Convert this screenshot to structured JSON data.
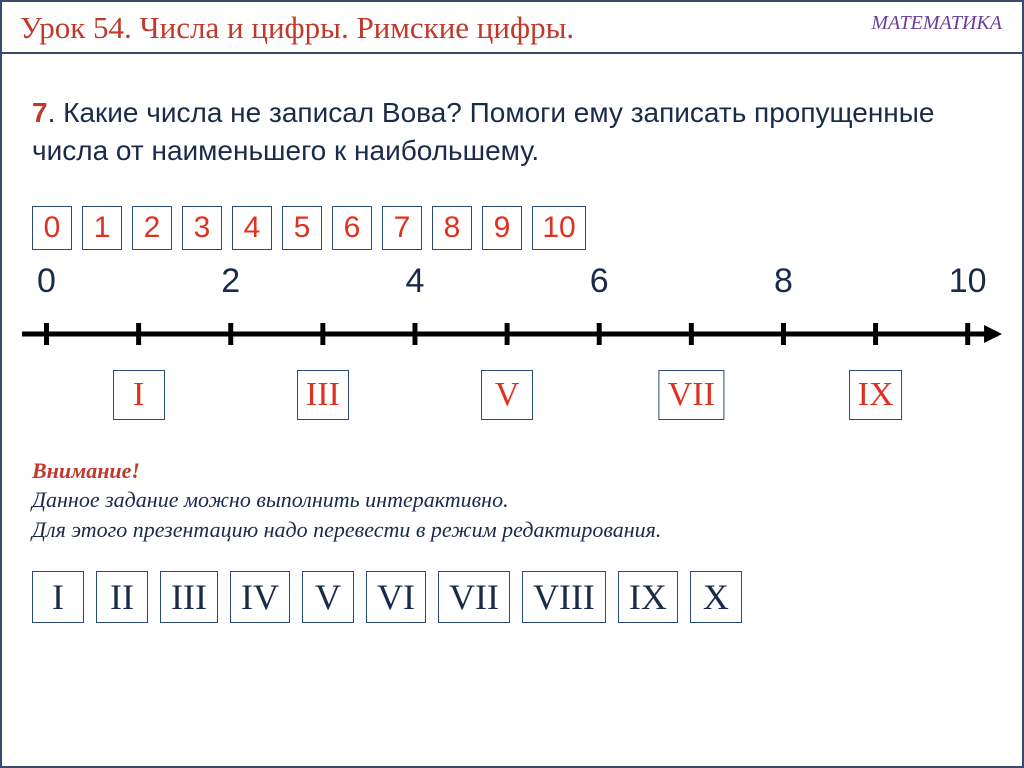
{
  "header": {
    "lesson_title": "Урок 54. Числа и цифры. Римские цифры.",
    "subject": "МАТЕМАТИКА",
    "title_color": "#c0392b",
    "subject_color": "#6a3f9a",
    "rule_color": "#3a4a6b"
  },
  "task": {
    "number": "7",
    "text": ". Какие числа не записал Вова? Помоги ему записать пропущенные числа от наименьшего к наибольшему.",
    "number_color": "#c0392b",
    "text_color": "#1a2a4a",
    "fontsize": 28
  },
  "arabic_numbers": {
    "values": [
      "0",
      "1",
      "2",
      "3",
      "4",
      "5",
      "6",
      "7",
      "8",
      "9",
      "10"
    ],
    "box_border_color": "#2a4a7b",
    "text_color": "#e03020",
    "fontsize": 30
  },
  "number_line": {
    "range": [
      0,
      10
    ],
    "axis_labels": [
      {
        "value": "0",
        "pos_pct": 2.5
      },
      {
        "value": "2",
        "pos_pct": 21.3
      },
      {
        "value": "4",
        "pos_pct": 40.1
      },
      {
        "value": "6",
        "pos_pct": 58.9
      },
      {
        "value": "8",
        "pos_pct": 77.7
      },
      {
        "value": "10",
        "pos_pct": 96.5
      }
    ],
    "tick_positions_pct": [
      2.5,
      11.9,
      21.3,
      30.7,
      40.1,
      49.5,
      58.9,
      68.3,
      77.7,
      87.1,
      96.5
    ],
    "line_color": "#000000",
    "line_width": 5,
    "tick_height": 22,
    "label_fontsize": 34,
    "label_color": "#1a2a4a",
    "roman_under": [
      {
        "value": "I",
        "pos_pct": 11.9
      },
      {
        "value": "III",
        "pos_pct": 30.7
      },
      {
        "value": "V",
        "pos_pct": 49.5
      },
      {
        "value": "VII",
        "pos_pct": 68.3
      },
      {
        "value": "IX",
        "pos_pct": 87.1
      }
    ],
    "roman_box_border": "#2a4a7b",
    "roman_text_color": "#e03020",
    "roman_fontsize": 34
  },
  "attention": {
    "title": "Внимание!",
    "line1": "Данное задание можно выполнить интерактивно.",
    "line2": "Для этого презентацию надо перевести в режим редактирования.",
    "title_color": "#c0392b",
    "body_color": "#1a2a4a",
    "fontsize": 22
  },
  "roman_full": {
    "values": [
      "I",
      "II",
      "III",
      "IV",
      "V",
      "VI",
      "VII",
      "VIII",
      "IX",
      "X"
    ],
    "box_border_color": "#2a4a7b",
    "text_color": "#1a2a4a",
    "fontsize": 36
  },
  "background_color": "#ffffff",
  "border_color": "#3a4a6b"
}
